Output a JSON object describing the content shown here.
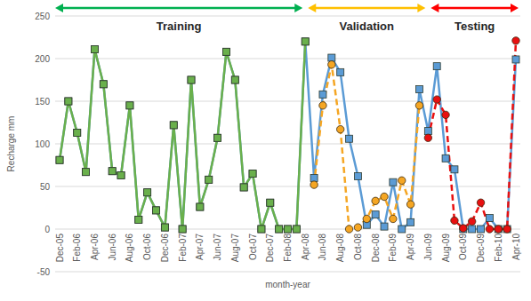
{
  "chart_data": {
    "type": "line",
    "x_label": "month-year",
    "y_label": "Recharge mm",
    "categories": [
      "Dec-05",
      null,
      "Feb-06",
      null,
      "Apr-06",
      null,
      "Jun-06",
      null,
      "Aug-06",
      null,
      "Oct-06",
      null,
      "Dec-06",
      null,
      "Feb-07",
      null,
      "Apr-07",
      null,
      "Jun-07",
      null,
      "Aug-07",
      null,
      "Oct-07",
      null,
      "Dec-07",
      null,
      "Feb-08",
      null,
      "Apr-08",
      null,
      "Jun-08",
      null,
      "Aug-08",
      null,
      "Oct-08",
      null,
      "Dec-08",
      null,
      "Feb-09",
      null,
      "Apr-09",
      null,
      "Jun-09",
      null,
      "Aug-09",
      null,
      "Oct-09",
      null,
      "Dec-09",
      null,
      "Feb-10",
      null,
      "Apr-10"
    ],
    "series": [
      {
        "color": "#5b9bd5",
        "marker": "square",
        "line_style": "solid",
        "values": [
          81,
          150,
          113,
          67,
          211,
          170,
          68,
          63,
          145,
          11,
          43,
          22,
          2,
          122,
          0,
          175,
          26,
          58,
          107,
          208,
          175,
          49,
          65,
          0,
          31,
          0,
          0,
          0,
          220,
          60,
          158,
          201,
          184,
          106,
          62,
          5,
          17,
          3,
          55,
          0,
          8,
          164,
          115,
          191,
          83,
          70,
          0,
          0,
          0,
          13,
          0,
          0,
          199
        ]
      },
      {
        "color": "#6ab04c",
        "marker": "square",
        "line_style": "solid",
        "values": [
          81,
          150,
          113,
          67,
          211,
          170,
          68,
          63,
          145,
          11,
          43,
          22,
          2,
          122,
          0,
          175,
          26,
          58,
          107,
          208,
          175,
          49,
          65,
          0,
          31,
          0,
          0,
          0,
          220,
          null,
          null,
          null,
          null,
          null,
          null,
          null,
          null,
          null,
          null,
          null,
          null,
          null,
          null,
          null,
          null,
          null,
          null,
          null,
          null,
          null,
          null,
          null,
          null
        ]
      },
      {
        "color": "#f5a623",
        "marker": "circle",
        "line_style": "dashed",
        "values": [
          null,
          null,
          null,
          null,
          null,
          null,
          null,
          null,
          null,
          null,
          null,
          null,
          null,
          null,
          null,
          null,
          null,
          null,
          null,
          null,
          null,
          null,
          null,
          null,
          null,
          null,
          null,
          null,
          null,
          52,
          145,
          193,
          117,
          0,
          2,
          12,
          33,
          38,
          12,
          57,
          29,
          145,
          null,
          null,
          null,
          null,
          null,
          null,
          null,
          null,
          null,
          null,
          null
        ]
      },
      {
        "color": "#e81010",
        "marker": "circle",
        "line_style": "dashed",
        "values": [
          null,
          null,
          null,
          null,
          null,
          null,
          null,
          null,
          null,
          null,
          null,
          null,
          null,
          null,
          null,
          null,
          null,
          null,
          null,
          null,
          null,
          null,
          null,
          null,
          null,
          null,
          null,
          null,
          null,
          null,
          null,
          null,
          null,
          null,
          null,
          null,
          null,
          null,
          null,
          null,
          null,
          null,
          107,
          152,
          134,
          10,
          1,
          9,
          31,
          0,
          0,
          0,
          221
        ]
      }
    ],
    "ylim": [
      -50,
      250
    ],
    "yticks": [
      -50,
      0,
      50,
      100,
      150,
      200,
      250
    ],
    "grid": true,
    "annotations": [
      {
        "text": "Training",
        "color": "#00b050",
        "from": "Dec-05",
        "to": "Apr-08"
      },
      {
        "text": "Validation",
        "color": "#ffc000",
        "from": "Apr-08",
        "to": "Jun-09"
      },
      {
        "text": "Testing",
        "color": "#ff0000",
        "from": "Jun-09",
        "to": "Apr-10"
      }
    ]
  }
}
